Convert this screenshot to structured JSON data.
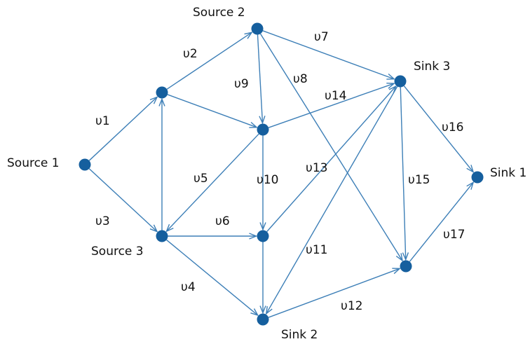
{
  "nodes": [
    {
      "id": "s1",
      "label": "Source 1"
    },
    {
      "id": "s2",
      "label": "Source 2"
    },
    {
      "id": "s3",
      "label": "Source 3"
    },
    {
      "id": "a",
      "label": ""
    },
    {
      "id": "b",
      "label": ""
    },
    {
      "id": "c",
      "label": ""
    },
    {
      "id": "k1",
      "label": "Sink 1"
    },
    {
      "id": "k2",
      "label": "Sink 2"
    },
    {
      "id": "k3",
      "label": "Sink 3"
    },
    {
      "id": "e",
      "label": ""
    }
  ],
  "edges": [
    {
      "from": "s1",
      "to": "a",
      "label": "υ1"
    },
    {
      "from": "a",
      "to": "s2",
      "label": "υ2"
    },
    {
      "from": "s1",
      "to": "s3",
      "label": "υ3"
    },
    {
      "from": "s3",
      "to": "k2",
      "label": "υ4"
    },
    {
      "from": "b",
      "to": "s3",
      "label": "υ5"
    },
    {
      "from": "s3",
      "to": "c",
      "label": "υ6"
    },
    {
      "from": "s2",
      "to": "k3",
      "label": "υ7"
    },
    {
      "from": "s2",
      "to": "e",
      "label": "υ8"
    },
    {
      "from": "s2",
      "to": "b",
      "label": "υ9"
    },
    {
      "from": "b",
      "to": "c",
      "label": "υ10"
    },
    {
      "from": "k3",
      "to": "k2",
      "label": "υ11"
    },
    {
      "from": "k2",
      "to": "e",
      "label": "υ12"
    },
    {
      "from": "c",
      "to": "k3",
      "label": "υ13"
    },
    {
      "from": "b",
      "to": "k3",
      "label": "υ14"
    },
    {
      "from": "k3",
      "to": "e",
      "label": "υ15"
    },
    {
      "from": "k3",
      "to": "k1",
      "label": "υ16"
    },
    {
      "from": "e",
      "to": "k1",
      "label": "υ17"
    },
    {
      "from": "s3",
      "to": "a",
      "label": ""
    },
    {
      "from": "a",
      "to": "b",
      "label": ""
    },
    {
      "from": "c",
      "to": "k2",
      "label": ""
    }
  ]
}
